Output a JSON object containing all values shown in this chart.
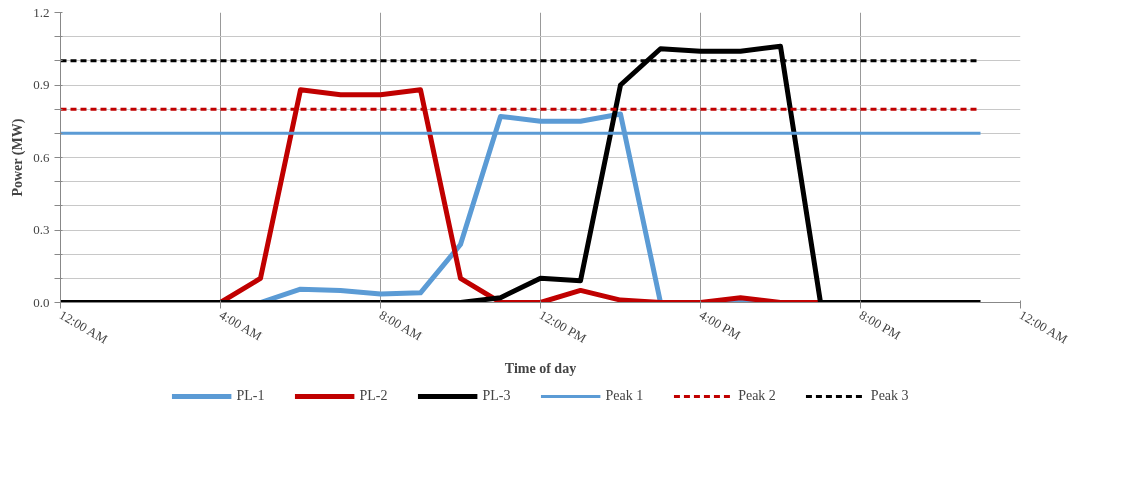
{
  "chart_data": {
    "type": "line",
    "xlabel": "Time of day",
    "ylabel": "Power (MW)",
    "x": [
      0,
      1,
      2,
      3,
      4,
      5,
      6,
      7,
      8,
      9,
      10,
      11,
      12,
      13,
      14,
      15,
      16,
      17,
      18,
      19,
      20,
      21,
      22,
      23
    ],
    "series": [
      {
        "name": "PL-1",
        "color": "#5b9bd5",
        "values": [
          null,
          null,
          null,
          null,
          0,
          0,
          0.055,
          0.05,
          0.035,
          0.04,
          0.24,
          0.77,
          0.75,
          0.75,
          0.78,
          0,
          0,
          0,
          0,
          null,
          null,
          null,
          null,
          null
        ]
      },
      {
        "name": "PL-2",
        "color": "#c00000",
        "values": [
          null,
          null,
          null,
          0,
          0,
          0.1,
          0.88,
          0.86,
          0.86,
          0.88,
          0.1,
          0,
          0,
          0.05,
          0.01,
          0,
          0,
          0.02,
          0,
          0,
          0,
          null,
          null,
          null
        ]
      },
      {
        "name": "PL-3",
        "color": "#000000",
        "values": [
          0,
          0,
          0,
          0,
          0,
          0,
          0,
          0,
          0,
          0,
          0,
          0.02,
          0.1,
          0.09,
          0.9,
          1.05,
          1.04,
          1.04,
          1.06,
          0,
          0,
          0,
          0,
          0
        ]
      },
      {
        "name": "Peak 1",
        "color": "#5b9bd5",
        "values": [
          0.7,
          0.7,
          0.7,
          0.7,
          0.7,
          0.7,
          0.7,
          0.7,
          0.7,
          0.7,
          0.7,
          0.7,
          0.7,
          0.7,
          0.7,
          0.7,
          0.7,
          0.7,
          0.7,
          0.7,
          0.7,
          0.7,
          0.7,
          0.7
        ],
        "line_style": "solid"
      },
      {
        "name": "Peak 2",
        "color": "#c00000",
        "values": [
          0.8,
          0.8,
          0.8,
          0.8,
          0.8,
          0.8,
          0.8,
          0.8,
          0.8,
          0.8,
          0.8,
          0.8,
          0.8,
          0.8,
          0.8,
          0.8,
          0.8,
          0.8,
          0.8,
          0.8,
          0.8,
          0.8,
          0.8,
          0.8
        ],
        "line_style": "dashed"
      },
      {
        "name": "Peak 3",
        "color": "#000000",
        "values": [
          1.0,
          1.0,
          1.0,
          1.0,
          1.0,
          1.0,
          1.0,
          1.0,
          1.0,
          1.0,
          1.0,
          1.0,
          1.0,
          1.0,
          1.0,
          1.0,
          1.0,
          1.0,
          1.0,
          1.0,
          1.0,
          1.0,
          1.0,
          1.0
        ],
        "line_style": "dashed"
      }
    ],
    "xlim": [
      0,
      24
    ],
    "xticks": [
      {
        "value": 0,
        "label": "12:00 AM"
      },
      {
        "value": 4,
        "label": "4:00 AM"
      },
      {
        "value": 8,
        "label": "8:00 AM"
      },
      {
        "value": 12,
        "label": "12:00 PM"
      },
      {
        "value": 16,
        "label": "4:00 PM"
      },
      {
        "value": 20,
        "label": "8:00 PM"
      },
      {
        "value": 24,
        "label": "12:00 AM"
      }
    ],
    "ylim": [
      0,
      1.2
    ],
    "yticks": [
      {
        "value": 0,
        "label": "0.0"
      },
      {
        "value": 0.1,
        "label": null
      },
      {
        "value": 0.2,
        "label": null
      },
      {
        "value": 0.3,
        "label": "0.3"
      },
      {
        "value": 0.4,
        "label": null
      },
      {
        "value": 0.5,
        "label": null
      },
      {
        "value": 0.6,
        "label": "0.6"
      },
      {
        "value": 0.7,
        "label": null
      },
      {
        "value": 0.8,
        "label": null
      },
      {
        "value": 0.9,
        "label": "0.9"
      },
      {
        "value": 1.0,
        "label": null
      },
      {
        "value": 1.1,
        "label": null
      },
      {
        "value": 1.2,
        "label": "1.2"
      }
    ],
    "grid": true,
    "legend": "bottom",
    "marker": "none",
    "line_style": "solid"
  }
}
